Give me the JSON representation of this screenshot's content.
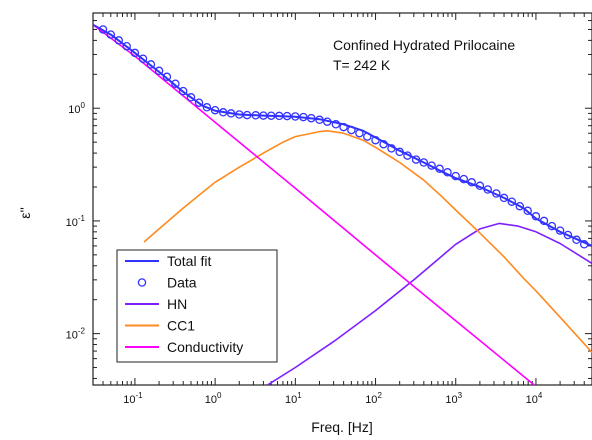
{
  "chart_data": {
    "type": "line",
    "xlabel": "Freq. [Hz]",
    "ylabel": "ε''",
    "x_scale": "log",
    "y_scale": "log",
    "xlim": [
      0.03,
      50000
    ],
    "ylim": [
      0.0035,
      7
    ],
    "x_ticks": [
      {
        "value": 0.1,
        "label": "10",
        "exp": "-1"
      },
      {
        "value": 1,
        "label": "10",
        "exp": "0"
      },
      {
        "value": 10,
        "label": "10",
        "exp": "1"
      },
      {
        "value": 100,
        "label": "10",
        "exp": "2"
      },
      {
        "value": 1000,
        "label": "10",
        "exp": "3"
      },
      {
        "value": 10000,
        "label": "10",
        "exp": "4"
      }
    ],
    "y_ticks": [
      {
        "value": 0.01,
        "label": "10",
        "exp": "-2"
      },
      {
        "value": 0.1,
        "label": "10",
        "exp": "-1"
      },
      {
        "value": 1,
        "label": "10",
        "exp": "0"
      }
    ],
    "grid": false,
    "legend_position": "bottom-left",
    "annotations": [
      "Confined Hydrated Prilocaine",
      "T= 242 K"
    ],
    "series": [
      {
        "name": "Total fit",
        "kind": "line",
        "color": "#3333ff",
        "x": [
          0.03,
          0.05,
          0.1,
          0.2,
          0.4,
          0.7,
          1,
          2,
          4,
          7,
          10,
          20,
          40,
          70,
          100,
          200,
          400,
          700,
          1000,
          2000,
          4000,
          7000,
          10000,
          20000,
          50000
        ],
        "y": [
          5.5,
          4.5,
          3.1,
          2.1,
          1.4,
          1.05,
          0.95,
          0.88,
          0.86,
          0.85,
          0.84,
          0.8,
          0.72,
          0.63,
          0.55,
          0.42,
          0.33,
          0.27,
          0.24,
          0.2,
          0.16,
          0.13,
          0.105,
          0.08,
          0.06
        ]
      },
      {
        "name": "Data",
        "kind": "markers",
        "color": "#3333ff",
        "x": [
          0.04,
          0.05,
          0.063,
          0.079,
          0.1,
          0.126,
          0.158,
          0.2,
          0.25,
          0.32,
          0.4,
          0.5,
          0.63,
          0.79,
          1,
          1.26,
          1.58,
          2,
          2.5,
          3.2,
          4,
          5,
          6.3,
          7.9,
          10,
          12.6,
          15.8,
          20,
          25,
          32,
          40,
          50,
          63,
          79,
          100,
          126,
          158,
          200,
          250,
          320,
          400,
          500,
          630,
          790,
          1000,
          1260,
          1580,
          2000,
          2500,
          3200,
          4000,
          5000,
          6300,
          7900,
          10000,
          12600,
          15800,
          20000,
          25000,
          32000,
          40000
        ],
        "y": [
          5.0,
          4.5,
          4.0,
          3.55,
          3.1,
          2.75,
          2.45,
          2.15,
          1.9,
          1.65,
          1.42,
          1.25,
          1.12,
          1.02,
          0.96,
          0.92,
          0.9,
          0.88,
          0.87,
          0.865,
          0.86,
          0.858,
          0.855,
          0.852,
          0.845,
          0.835,
          0.815,
          0.79,
          0.76,
          0.72,
          0.68,
          0.64,
          0.6,
          0.56,
          0.52,
          0.48,
          0.44,
          0.41,
          0.38,
          0.35,
          0.33,
          0.31,
          0.29,
          0.27,
          0.25,
          0.235,
          0.22,
          0.205,
          0.19,
          0.175,
          0.16,
          0.148,
          0.135,
          0.123,
          0.11,
          0.1,
          0.09,
          0.082,
          0.075,
          0.068,
          0.062
        ]
      },
      {
        "name": "HN",
        "kind": "line",
        "color": "#7f1fff",
        "x": [
          4.5,
          10,
          30,
          100,
          300,
          700,
          1000,
          2000,
          3500,
          6000,
          10000,
          20000,
          50000
        ],
        "y": [
          0.0035,
          0.005,
          0.0085,
          0.016,
          0.03,
          0.05,
          0.062,
          0.085,
          0.095,
          0.09,
          0.08,
          0.063,
          0.042
        ]
      },
      {
        "name": "CC1",
        "kind": "line",
        "color": "#ff8a1f",
        "x": [
          0.13,
          0.2,
          0.4,
          0.7,
          1,
          2,
          4,
          7,
          10,
          20,
          25,
          40,
          70,
          100,
          200,
          400,
          700,
          1000,
          2000,
          4000,
          7000,
          10000,
          20000,
          50000
        ],
        "y": [
          0.065,
          0.085,
          0.13,
          0.18,
          0.22,
          0.3,
          0.4,
          0.5,
          0.56,
          0.62,
          0.63,
          0.6,
          0.52,
          0.45,
          0.33,
          0.23,
          0.16,
          0.125,
          0.078,
          0.048,
          0.031,
          0.024,
          0.014,
          0.0068
        ]
      },
      {
        "name": "Conductivity",
        "kind": "line",
        "color": "#ff00ff",
        "x": [
          0.03,
          0.1,
          1,
          10,
          100,
          1000,
          10000,
          50000
        ],
        "y": [
          5.5,
          2.9,
          0.75,
          0.195,
          0.05,
          0.013,
          0.0034,
          0.0014
        ]
      }
    ]
  }
}
